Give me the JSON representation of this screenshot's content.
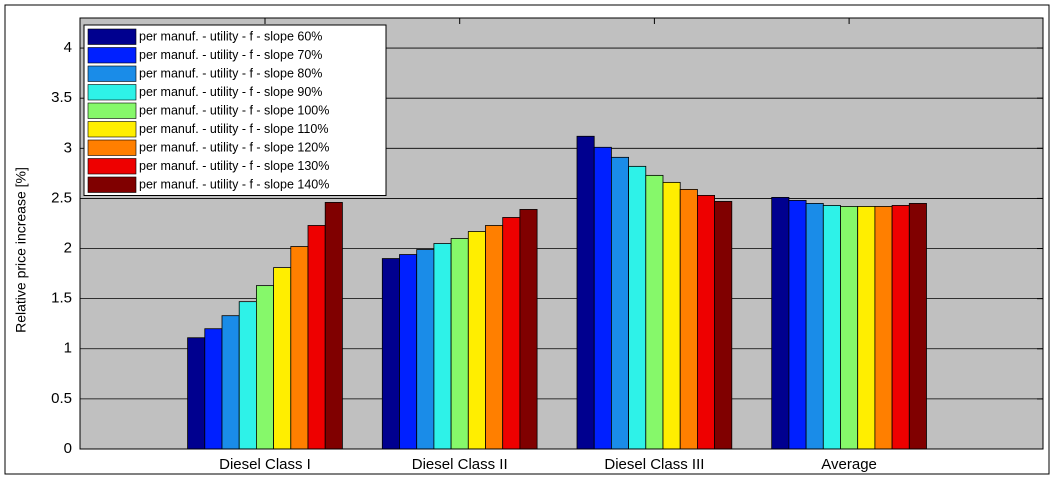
{
  "chart_data": {
    "type": "bar",
    "ylabel": "Relative price increase [%]",
    "categories": [
      "Diesel Class I",
      "Diesel Class II",
      "Diesel Class III",
      "Average"
    ],
    "ylim": [
      0,
      4.3
    ],
    "yticks": [
      0,
      0.5,
      1,
      1.5,
      2,
      2.5,
      3,
      3.5,
      4
    ],
    "grid": true,
    "legend_position": "upper left",
    "series": [
      {
        "name": "per manuf. - utility - f - slope 60%",
        "color": "#00008f",
        "values": [
          1.11,
          1.9,
          3.12,
          2.51
        ]
      },
      {
        "name": "per manuf. - utility - f - slope 70%",
        "color": "#0020ff",
        "values": [
          1.2,
          1.94,
          3.01,
          2.48
        ]
      },
      {
        "name": "per manuf. - utility - f - slope 80%",
        "color": "#1a8ce8",
        "values": [
          1.33,
          1.99,
          2.91,
          2.45
        ]
      },
      {
        "name": "per manuf. - utility - f - slope 90%",
        "color": "#2ef2e8",
        "values": [
          1.47,
          2.05,
          2.82,
          2.43
        ]
      },
      {
        "name": "per manuf. - utility - f - slope 100%",
        "color": "#86f86a",
        "values": [
          1.63,
          2.1,
          2.73,
          2.42
        ]
      },
      {
        "name": "per manuf. - utility - f - slope 110%",
        "color": "#ffee00",
        "values": [
          1.81,
          2.17,
          2.66,
          2.42
        ]
      },
      {
        "name": "per manuf. - utility - f - slope 120%",
        "color": "#ff7f00",
        "values": [
          2.02,
          2.23,
          2.59,
          2.42
        ]
      },
      {
        "name": "per manuf. - utility - f - slope 130%",
        "color": "#ee0000",
        "values": [
          2.23,
          2.31,
          2.53,
          2.43
        ]
      },
      {
        "name": "per manuf. - utility - f - slope 140%",
        "color": "#800000",
        "values": [
          2.46,
          2.39,
          2.47,
          2.45
        ]
      }
    ]
  }
}
